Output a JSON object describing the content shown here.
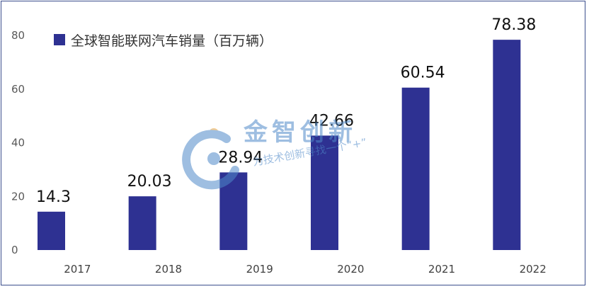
{
  "chart_data": {
    "type": "bar",
    "title": "",
    "xlabel": "",
    "ylabel": "",
    "categories": [
      "2017",
      "2018",
      "2019",
      "2020",
      "2021",
      "2022"
    ],
    "series": [
      {
        "name": "全球智能联网汽车销量（百万辆）",
        "values": [
          14.3,
          20.03,
          28.94,
          42.66,
          60.54,
          78.38
        ],
        "value_labels": [
          "14.3",
          "20.03",
          "28.94",
          "42.66",
          "60.54",
          "78.38"
        ],
        "color": "#2e3192"
      }
    ],
    "ylim": [
      0,
      80
    ],
    "yticks": [
      0,
      20,
      40,
      60,
      80
    ],
    "grid": false,
    "legend_position": "top-left"
  },
  "watermark": {
    "brand": "金智创新",
    "slogan": "为技术创新寻找一个“+”",
    "icon": "watermark-logo-icon"
  },
  "colors": {
    "bar": "#2e3192",
    "frame_border": "#3b4e8c",
    "watermark": "#4f89c9"
  }
}
